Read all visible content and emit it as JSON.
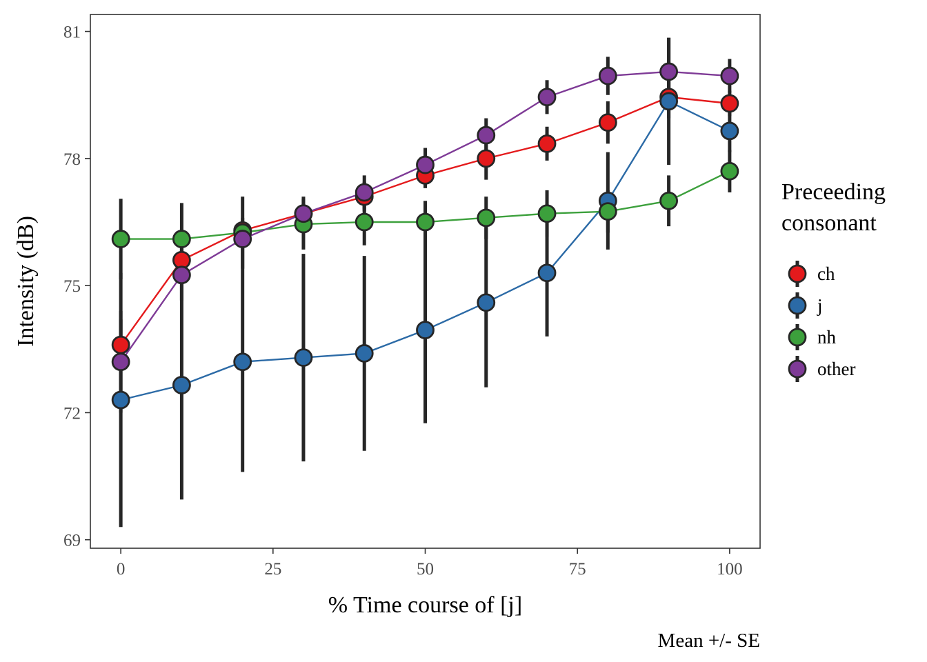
{
  "chart_data": {
    "type": "line",
    "xlabel": "% Time course of [j]",
    "ylabel": "Intensity (dB)",
    "caption": "Mean +/- SE",
    "xlim": [
      -5,
      105
    ],
    "ylim": [
      68.8,
      81.4
    ],
    "x_ticks": [
      0,
      25,
      50,
      75,
      100
    ],
    "x_tick_labels": [
      "0",
      "25",
      "50",
      "75",
      "100"
    ],
    "y_ticks": [
      69,
      72,
      75,
      78,
      81
    ],
    "y_tick_labels": [
      "69",
      "72",
      "75",
      "78",
      "81"
    ],
    "grid": false,
    "error_bars": "SE",
    "legend": {
      "title_lines": [
        "Preceeding",
        "consonant"
      ],
      "position": "right"
    },
    "x": [
      0,
      10,
      20,
      30,
      40,
      50,
      60,
      70,
      80,
      90,
      100
    ],
    "series": [
      {
        "name": "ch",
        "color": "#e41a1c",
        "values": [
          73.6,
          75.6,
          76.3,
          76.7,
          77.1,
          77.6,
          78.0,
          78.35,
          78.85,
          79.45,
          79.3
        ],
        "se": [
          0.6,
          0.5,
          0.3,
          0.35,
          0.35,
          0.3,
          0.5,
          0.4,
          0.5,
          0.5,
          0.3
        ]
      },
      {
        "name": "j",
        "color": "#2b6aa6",
        "values": [
          72.3,
          72.65,
          73.2,
          73.3,
          73.4,
          73.95,
          74.6,
          75.3,
          77.0,
          79.35,
          78.65
        ],
        "se": [
          3.0,
          2.7,
          2.6,
          2.45,
          2.3,
          2.2,
          2.0,
          1.5,
          1.15,
          1.5,
          0.5
        ]
      },
      {
        "name": "nh",
        "color": "#3ca03c",
        "values": [
          76.1,
          76.1,
          76.25,
          76.45,
          76.5,
          76.5,
          76.6,
          76.7,
          76.75,
          77.0,
          77.7
        ],
        "se": [
          0.95,
          0.85,
          0.85,
          0.6,
          0.55,
          0.5,
          0.5,
          0.55,
          0.5,
          0.6,
          0.5
        ]
      },
      {
        "name": "other",
        "color": "#7e3a96",
        "values": [
          73.2,
          75.25,
          76.1,
          76.7,
          77.2,
          77.85,
          78.55,
          79.45,
          79.95,
          80.05,
          79.95
        ],
        "se": [
          1.2,
          0.6,
          0.3,
          0.4,
          0.4,
          0.4,
          0.4,
          0.4,
          0.45,
          0.8,
          0.4
        ]
      }
    ]
  }
}
